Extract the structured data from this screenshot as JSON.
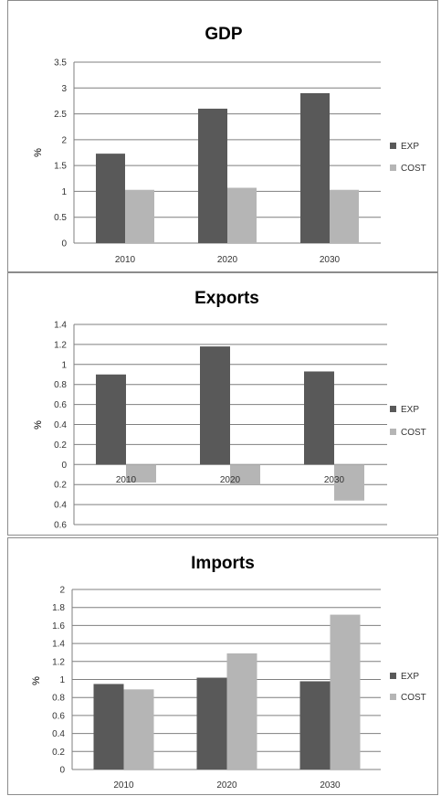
{
  "colors": {
    "EXP": "#595959",
    "COST": "#b5b5b5",
    "grid": "#7f7f7f"
  },
  "chart_data": [
    {
      "type": "bar",
      "title": "GDP",
      "ylabel": "%",
      "categories": [
        "2010",
        "2020",
        "2030"
      ],
      "series": [
        {
          "name": "EXP",
          "values": [
            1.73,
            2.6,
            2.9
          ]
        },
        {
          "name": "COST",
          "values": [
            1.03,
            1.07,
            1.03
          ]
        }
      ],
      "ylim": [
        0,
        3.5
      ],
      "yticks": [
        0,
        0.5,
        1,
        1.5,
        2,
        2.5,
        3,
        3.5
      ],
      "ytick_labels": [
        "0",
        "0.5",
        "1",
        "1.5",
        "2",
        "2.5",
        "3",
        "3.5"
      ],
      "grid": true,
      "legend": "right"
    },
    {
      "type": "bar",
      "title": "Exports",
      "ylabel": "%",
      "categories": [
        "2010",
        "2020",
        "2030"
      ],
      "series": [
        {
          "name": "EXP",
          "values": [
            0.9,
            1.18,
            0.93
          ]
        },
        {
          "name": "COST",
          "values": [
            -0.18,
            -0.2,
            -0.36
          ]
        }
      ],
      "ylim": [
        -0.6,
        1.4
      ],
      "yticks": [
        1.4,
        1.2,
        1,
        0.8,
        0.6,
        0.4,
        0.2,
        0,
        -0.2,
        -0.4,
        -0.6
      ],
      "ytick_labels": [
        "1.4",
        "1.2",
        "1",
        "0.8",
        "0.6",
        "0.4",
        "0.2",
        "0",
        "0.2",
        "0.4",
        "0.6"
      ],
      "grid": true,
      "legend": "right"
    },
    {
      "type": "bar",
      "title": "Imports",
      "ylabel": "%",
      "categories": [
        "2010",
        "2020",
        "2030"
      ],
      "series": [
        {
          "name": "EXP",
          "values": [
            0.95,
            1.02,
            0.98
          ]
        },
        {
          "name": "COST",
          "values": [
            0.89,
            1.29,
            1.72
          ]
        }
      ],
      "ylim": [
        0,
        2
      ],
      "yticks": [
        0,
        0.2,
        0.4,
        0.6,
        0.8,
        1,
        1.2,
        1.4,
        1.6,
        1.8,
        2
      ],
      "ytick_labels": [
        "0",
        "0.2",
        "0.4",
        "0.6",
        "0.8",
        "1",
        "1.2",
        "1.4",
        "1.6",
        "1.8",
        "2"
      ],
      "grid": true,
      "legend": "right"
    }
  ]
}
